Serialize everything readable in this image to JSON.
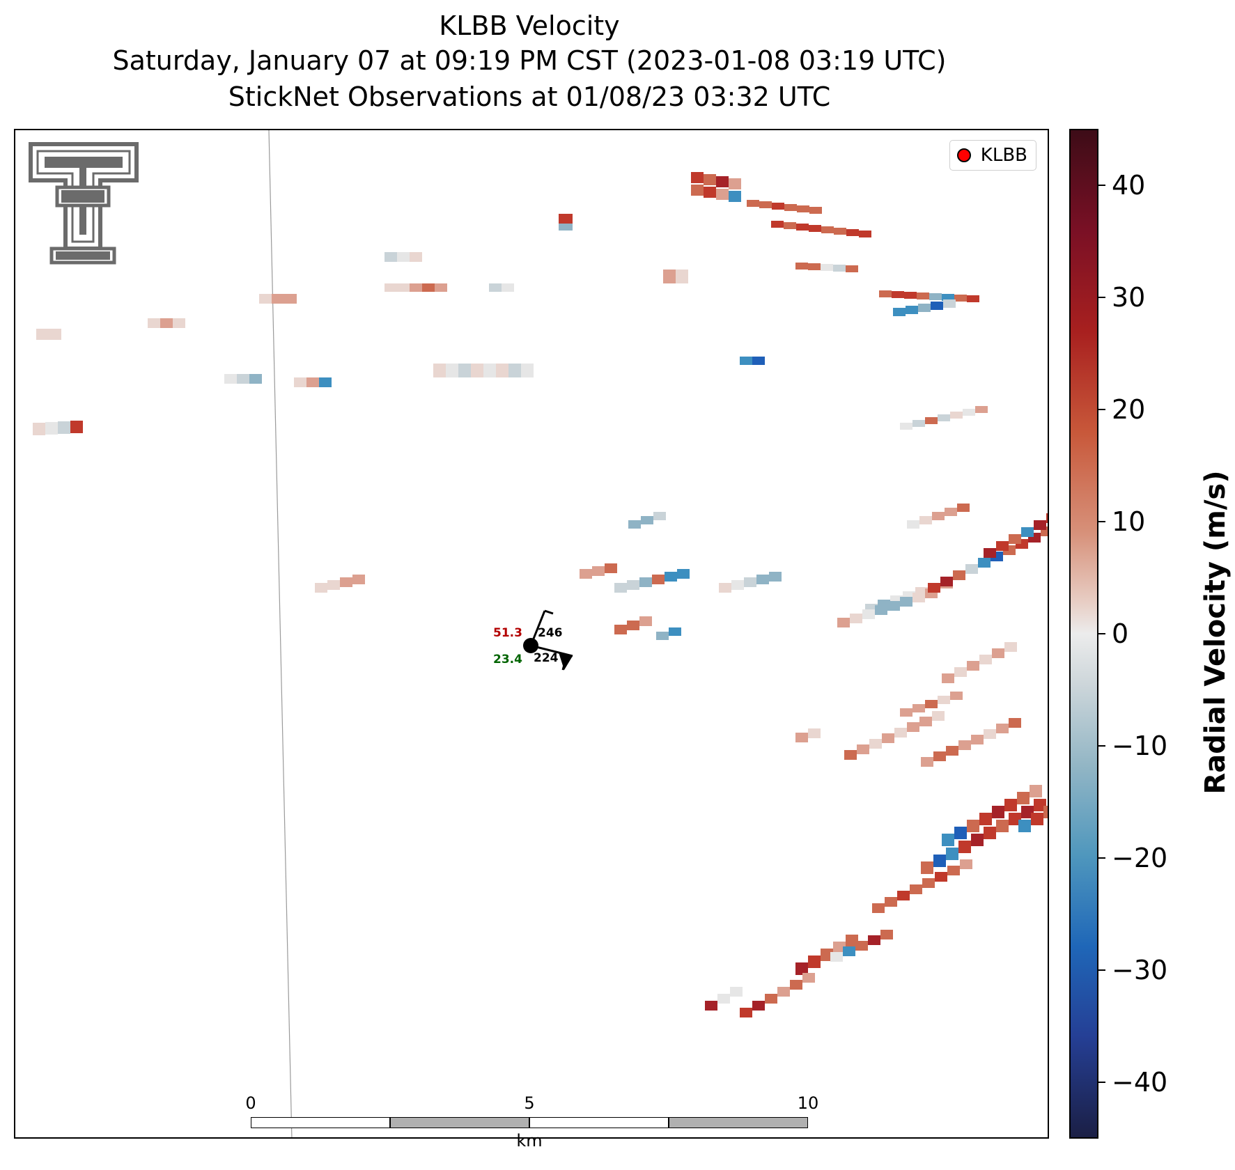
{
  "title": {
    "line1": "KLBB Velocity",
    "line2": "Saturday, January 07 at 09:19 PM CST (2023-01-08 03:19 UTC)",
    "line3": "StickNet Observations at 01/08/23 03:32 UTC"
  },
  "legend": {
    "label": "KLBB",
    "marker_color": "#ff0000"
  },
  "station": {
    "temperature": "51.3",
    "dewpoint": "23.4",
    "value_top": "246",
    "value_bottom": "224",
    "temperature_color": "#b30000",
    "dewpoint_color": "#006400"
  },
  "scalebar": {
    "ticks": [
      "0",
      "5",
      "10"
    ],
    "unit": "km",
    "max_km": 10
  },
  "colorbar": {
    "label": "Radial Velocity (m/s)",
    "vmin": -45,
    "vmax": 45,
    "ticks": [
      {
        "value": 40,
        "label": "40"
      },
      {
        "value": 30,
        "label": "30"
      },
      {
        "value": 20,
        "label": "20"
      },
      {
        "value": 10,
        "label": "10"
      },
      {
        "value": 0,
        "label": "0"
      },
      {
        "value": -10,
        "label": "−10"
      },
      {
        "value": -20,
        "label": "−20"
      },
      {
        "value": -30,
        "label": "−30"
      },
      {
        "value": -40,
        "label": "−40"
      }
    ]
  },
  "logo": {
    "icon": "texas-tech-double-t-logo"
  },
  "colors": {
    "inbound_max": "#1b1f45",
    "zero": "#ececec",
    "outbound_max": "#3d0c17"
  }
}
